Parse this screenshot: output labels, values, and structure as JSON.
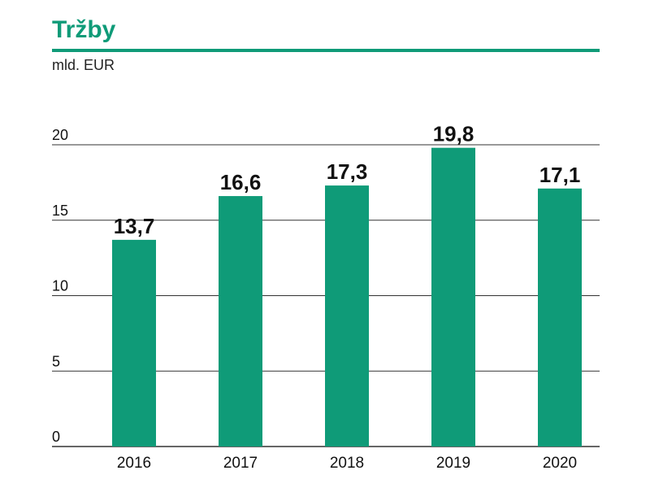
{
  "title": "Tržby",
  "unit": "mld. EUR",
  "colors": {
    "accent": "#0f9b78",
    "bar": "#0f9b78",
    "grid": "#333333",
    "text": "#111111"
  },
  "chart_data": {
    "type": "bar",
    "categories": [
      "2016",
      "2017",
      "2018",
      "2019",
      "2020"
    ],
    "values": [
      13.7,
      16.6,
      17.3,
      19.8,
      17.1
    ],
    "value_labels": [
      "13,7",
      "16,6",
      "17,3",
      "19,8",
      "17,1"
    ],
    "y_ticks": [
      "0",
      "5",
      "10",
      "15",
      "20"
    ],
    "ylim": [
      0,
      20
    ],
    "grid": true
  }
}
